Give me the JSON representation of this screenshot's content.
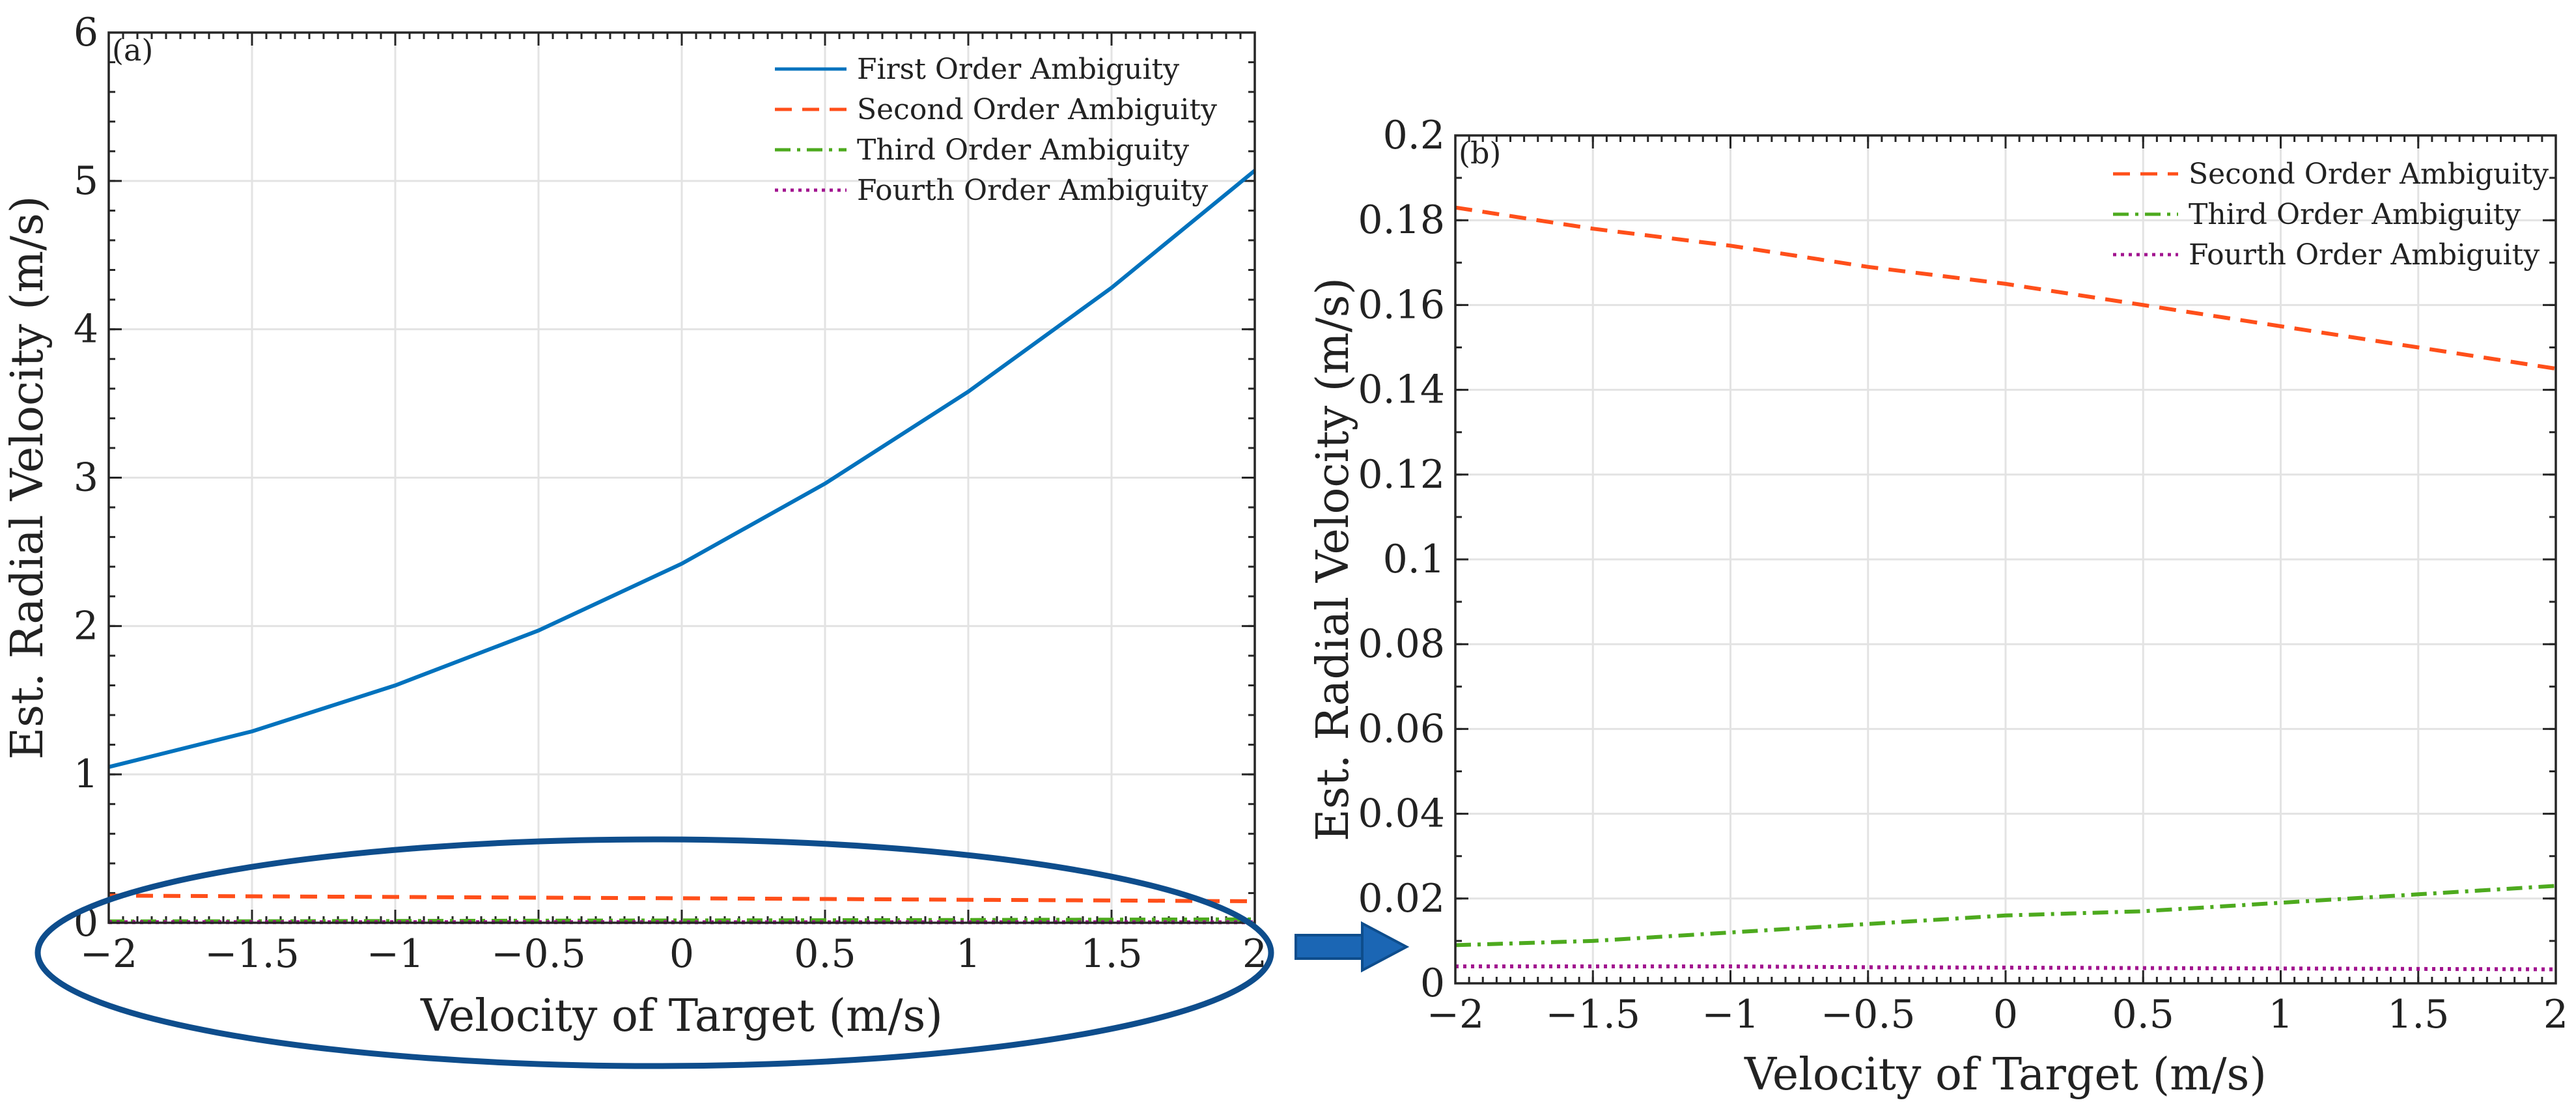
{
  "chart_data": [
    {
      "panel": "(a)",
      "type": "line",
      "xlabel": "Velocity of Target (m/s)",
      "ylabel": "Est. Radial Velocity (m/s)",
      "xlim": [
        -2,
        2
      ],
      "ylim": [
        0,
        6
      ],
      "xticks": [
        -2,
        -1.5,
        -1,
        -0.5,
        0,
        0.5,
        1,
        1.5,
        2
      ],
      "xtick_labels": [
        "−2",
        "−1.5",
        "−1",
        "−0.5",
        "0",
        "0.5",
        "1",
        "1.5",
        "2"
      ],
      "yticks": [
        0,
        1,
        2,
        3,
        4,
        5,
        6
      ],
      "ytick_labels": [
        "0",
        "1",
        "2",
        "3",
        "4",
        "5",
        "6"
      ],
      "grid": true,
      "legend_position": "top-right",
      "x": [
        -2,
        -1.5,
        -1,
        -0.5,
        0,
        0.5,
        1,
        1.5,
        2
      ],
      "series": [
        {
          "name": "First Order Ambiguity",
          "color": "#0072BD",
          "dash": "solid",
          "values": [
            1.05,
            1.29,
            1.6,
            1.97,
            2.42,
            2.96,
            3.58,
            4.28,
            5.07
          ]
        },
        {
          "name": "Second Order Ambiguity",
          "color": "#FF4F1A",
          "dash": "dashed",
          "values": [
            0.183,
            0.178,
            0.174,
            0.169,
            0.165,
            0.16,
            0.155,
            0.15,
            0.145
          ]
        },
        {
          "name": "Third Order Ambiguity",
          "color": "#4DAA1E",
          "dash": "dashdot",
          "values": [
            0.009,
            0.01,
            0.012,
            0.014,
            0.016,
            0.017,
            0.019,
            0.021,
            0.023
          ]
        },
        {
          "name": "Fourth Order Ambiguity",
          "color": "#A2148F",
          "dash": "dotted",
          "values": [
            0.004,
            0.004,
            0.004,
            0.0038,
            0.0037,
            0.0036,
            0.0035,
            0.0034,
            0.0033
          ]
        }
      ]
    },
    {
      "panel": "(b)",
      "type": "line",
      "xlabel": "Velocity of Target (m/s)",
      "ylabel": "Est. Radial Velocity (m/s)",
      "xlim": [
        -2,
        2
      ],
      "ylim": [
        0,
        0.2
      ],
      "xticks": [
        -2,
        -1.5,
        -1,
        -0.5,
        0,
        0.5,
        1,
        1.5,
        2
      ],
      "xtick_labels": [
        "−2",
        "−1.5",
        "−1",
        "−0.5",
        "0",
        "0.5",
        "1",
        "1.5",
        "2"
      ],
      "yticks": [
        0,
        0.02,
        0.04,
        0.06,
        0.08,
        0.1,
        0.12,
        0.14,
        0.16,
        0.18,
        0.2
      ],
      "ytick_labels": [
        "0",
        "0.02",
        "0.04",
        "0.06",
        "0.08",
        "0.1",
        "0.12",
        "0.14",
        "0.16",
        "0.18",
        "0.2"
      ],
      "grid": true,
      "legend_position": "top-right",
      "x": [
        -2,
        -1.5,
        -1,
        -0.5,
        0,
        0.5,
        1,
        1.5,
        2
      ],
      "series": [
        {
          "name": "Second Order Ambiguity",
          "color": "#FF4F1A",
          "dash": "dashed",
          "values": [
            0.183,
            0.178,
            0.174,
            0.169,
            0.165,
            0.16,
            0.155,
            0.15,
            0.145
          ]
        },
        {
          "name": "Third Order Ambiguity",
          "color": "#4DAA1E",
          "dash": "dashdot",
          "values": [
            0.009,
            0.01,
            0.012,
            0.014,
            0.016,
            0.017,
            0.019,
            0.021,
            0.023
          ]
        },
        {
          "name": "Fourth Order Ambiguity",
          "color": "#A2148F",
          "dash": "dotted",
          "values": [
            0.004,
            0.004,
            0.004,
            0.0038,
            0.0037,
            0.0036,
            0.0035,
            0.0034,
            0.0033
          ]
        }
      ]
    }
  ],
  "annotation": {
    "highlight_color": "#0E4D8C",
    "arrow_color": "#1B66B4",
    "meaning": "zoom-from-a-to-b"
  }
}
